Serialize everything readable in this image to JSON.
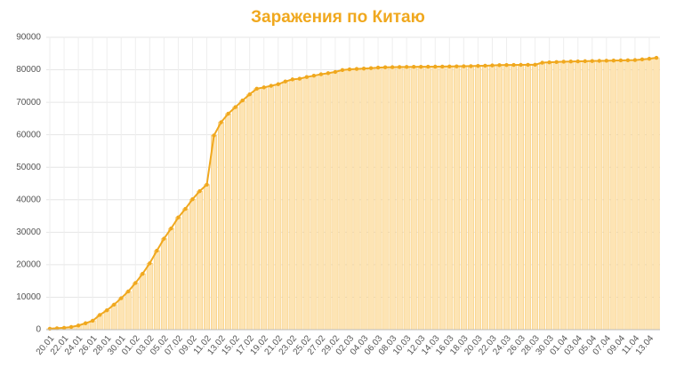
{
  "chart_data": {
    "type": "bar-line",
    "title": "Заражения по Китаю",
    "categories": [
      "20.01",
      null,
      "22.01",
      null,
      "24.01",
      null,
      "26.01",
      null,
      "28.01",
      null,
      "30.01",
      null,
      "01.02",
      null,
      "03.02",
      null,
      "05.02",
      null,
      "07.02",
      null,
      "09.02",
      null,
      "11.02",
      null,
      "13.02",
      null,
      "15.02",
      null,
      "17.02",
      null,
      "19.02",
      null,
      "21.02",
      null,
      "23.02",
      null,
      "25.02",
      null,
      "27.02",
      null,
      "29.02",
      null,
      "02.03",
      null,
      "04.03",
      null,
      "06.03",
      null,
      "08.03",
      null,
      "10.03",
      null,
      "12.03",
      null,
      "14.03",
      null,
      "16.03",
      null,
      "18.03",
      null,
      "20.03",
      null,
      "22.03",
      null,
      "24.03",
      null,
      "26.03",
      null,
      "28.03",
      null,
      "30.03",
      null,
      "01.04",
      null,
      "03.04",
      null,
      "05.04",
      null,
      "07.04",
      null,
      "09.04",
      null,
      "11.04",
      null,
      "13.04",
      null
    ],
    "values": [
      300,
      440,
      570,
      830,
      1290,
      1980,
      2740,
      4520,
      5970,
      7710,
      9690,
      11790,
      14380,
      17210,
      20440,
      24320,
      28020,
      31160,
      34550,
      37200,
      40170,
      42640,
      44650,
      59800,
      63850,
      66490,
      68500,
      70550,
      72440,
      74190,
      74580,
      75080,
      75570,
      76400,
      77040,
      77260,
      77780,
      78190,
      78630,
      78960,
      79360,
      79930,
      80140,
      80260,
      80380,
      80500,
      80670,
      80770,
      80810,
      80860,
      80880,
      80910,
      80930,
      80950,
      80970,
      81000,
      81030,
      81060,
      81100,
      81140,
      81200,
      81260,
      81350,
      81440,
      81480,
      81500,
      81520,
      81540,
      81560,
      82200,
      82300,
      82400,
      82500,
      82550,
      82600,
      82650,
      82700,
      82750,
      82800,
      82850,
      82900,
      82950,
      83000,
      83200,
      83400,
      83700
    ],
    "color": "#f0a81e",
    "bar_color": "#fde4b4",
    "ylim": [
      0,
      90000
    ],
    "yticks": [
      0,
      10000,
      20000,
      30000,
      40000,
      50000,
      60000,
      70000,
      80000,
      90000
    ],
    "grid": true
  }
}
